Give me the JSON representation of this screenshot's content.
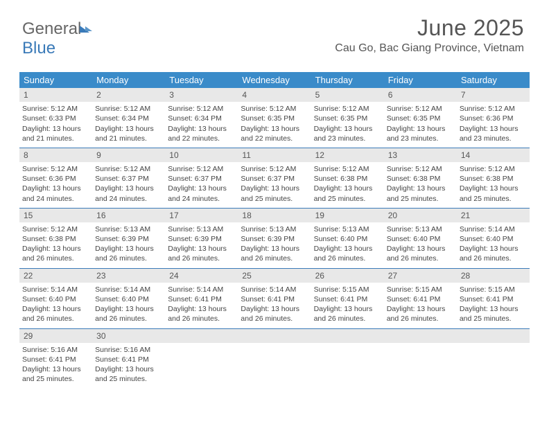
{
  "logo": {
    "part1": "General",
    "part2": "Blue"
  },
  "title": "June 2025",
  "location": "Cau Go, Bac Giang Province, Vietnam",
  "colors": {
    "header_bg": "#3a8bc9",
    "row_divider": "#3a7ab8",
    "daynum_bg": "#e8e8e8",
    "text": "#444444",
    "title_text": "#555555"
  },
  "weekdays": [
    "Sunday",
    "Monday",
    "Tuesday",
    "Wednesday",
    "Thursday",
    "Friday",
    "Saturday"
  ],
  "days": [
    {
      "n": "1",
      "sunrise": "Sunrise: 5:12 AM",
      "sunset": "Sunset: 6:33 PM",
      "dl1": "Daylight: 13 hours",
      "dl2": "and 21 minutes."
    },
    {
      "n": "2",
      "sunrise": "Sunrise: 5:12 AM",
      "sunset": "Sunset: 6:34 PM",
      "dl1": "Daylight: 13 hours",
      "dl2": "and 21 minutes."
    },
    {
      "n": "3",
      "sunrise": "Sunrise: 5:12 AM",
      "sunset": "Sunset: 6:34 PM",
      "dl1": "Daylight: 13 hours",
      "dl2": "and 22 minutes."
    },
    {
      "n": "4",
      "sunrise": "Sunrise: 5:12 AM",
      "sunset": "Sunset: 6:35 PM",
      "dl1": "Daylight: 13 hours",
      "dl2": "and 22 minutes."
    },
    {
      "n": "5",
      "sunrise": "Sunrise: 5:12 AM",
      "sunset": "Sunset: 6:35 PM",
      "dl1": "Daylight: 13 hours",
      "dl2": "and 23 minutes."
    },
    {
      "n": "6",
      "sunrise": "Sunrise: 5:12 AM",
      "sunset": "Sunset: 6:35 PM",
      "dl1": "Daylight: 13 hours",
      "dl2": "and 23 minutes."
    },
    {
      "n": "7",
      "sunrise": "Sunrise: 5:12 AM",
      "sunset": "Sunset: 6:36 PM",
      "dl1": "Daylight: 13 hours",
      "dl2": "and 23 minutes."
    },
    {
      "n": "8",
      "sunrise": "Sunrise: 5:12 AM",
      "sunset": "Sunset: 6:36 PM",
      "dl1": "Daylight: 13 hours",
      "dl2": "and 24 minutes."
    },
    {
      "n": "9",
      "sunrise": "Sunrise: 5:12 AM",
      "sunset": "Sunset: 6:37 PM",
      "dl1": "Daylight: 13 hours",
      "dl2": "and 24 minutes."
    },
    {
      "n": "10",
      "sunrise": "Sunrise: 5:12 AM",
      "sunset": "Sunset: 6:37 PM",
      "dl1": "Daylight: 13 hours",
      "dl2": "and 24 minutes."
    },
    {
      "n": "11",
      "sunrise": "Sunrise: 5:12 AM",
      "sunset": "Sunset: 6:37 PM",
      "dl1": "Daylight: 13 hours",
      "dl2": "and 25 minutes."
    },
    {
      "n": "12",
      "sunrise": "Sunrise: 5:12 AM",
      "sunset": "Sunset: 6:38 PM",
      "dl1": "Daylight: 13 hours",
      "dl2": "and 25 minutes."
    },
    {
      "n": "13",
      "sunrise": "Sunrise: 5:12 AM",
      "sunset": "Sunset: 6:38 PM",
      "dl1": "Daylight: 13 hours",
      "dl2": "and 25 minutes."
    },
    {
      "n": "14",
      "sunrise": "Sunrise: 5:12 AM",
      "sunset": "Sunset: 6:38 PM",
      "dl1": "Daylight: 13 hours",
      "dl2": "and 25 minutes."
    },
    {
      "n": "15",
      "sunrise": "Sunrise: 5:12 AM",
      "sunset": "Sunset: 6:38 PM",
      "dl1": "Daylight: 13 hours",
      "dl2": "and 26 minutes."
    },
    {
      "n": "16",
      "sunrise": "Sunrise: 5:13 AM",
      "sunset": "Sunset: 6:39 PM",
      "dl1": "Daylight: 13 hours",
      "dl2": "and 26 minutes."
    },
    {
      "n": "17",
      "sunrise": "Sunrise: 5:13 AM",
      "sunset": "Sunset: 6:39 PM",
      "dl1": "Daylight: 13 hours",
      "dl2": "and 26 minutes."
    },
    {
      "n": "18",
      "sunrise": "Sunrise: 5:13 AM",
      "sunset": "Sunset: 6:39 PM",
      "dl1": "Daylight: 13 hours",
      "dl2": "and 26 minutes."
    },
    {
      "n": "19",
      "sunrise": "Sunrise: 5:13 AM",
      "sunset": "Sunset: 6:40 PM",
      "dl1": "Daylight: 13 hours",
      "dl2": "and 26 minutes."
    },
    {
      "n": "20",
      "sunrise": "Sunrise: 5:13 AM",
      "sunset": "Sunset: 6:40 PM",
      "dl1": "Daylight: 13 hours",
      "dl2": "and 26 minutes."
    },
    {
      "n": "21",
      "sunrise": "Sunrise: 5:14 AM",
      "sunset": "Sunset: 6:40 PM",
      "dl1": "Daylight: 13 hours",
      "dl2": "and 26 minutes."
    },
    {
      "n": "22",
      "sunrise": "Sunrise: 5:14 AM",
      "sunset": "Sunset: 6:40 PM",
      "dl1": "Daylight: 13 hours",
      "dl2": "and 26 minutes."
    },
    {
      "n": "23",
      "sunrise": "Sunrise: 5:14 AM",
      "sunset": "Sunset: 6:40 PM",
      "dl1": "Daylight: 13 hours",
      "dl2": "and 26 minutes."
    },
    {
      "n": "24",
      "sunrise": "Sunrise: 5:14 AM",
      "sunset": "Sunset: 6:41 PM",
      "dl1": "Daylight: 13 hours",
      "dl2": "and 26 minutes."
    },
    {
      "n": "25",
      "sunrise": "Sunrise: 5:14 AM",
      "sunset": "Sunset: 6:41 PM",
      "dl1": "Daylight: 13 hours",
      "dl2": "and 26 minutes."
    },
    {
      "n": "26",
      "sunrise": "Sunrise: 5:15 AM",
      "sunset": "Sunset: 6:41 PM",
      "dl1": "Daylight: 13 hours",
      "dl2": "and 26 minutes."
    },
    {
      "n": "27",
      "sunrise": "Sunrise: 5:15 AM",
      "sunset": "Sunset: 6:41 PM",
      "dl1": "Daylight: 13 hours",
      "dl2": "and 26 minutes."
    },
    {
      "n": "28",
      "sunrise": "Sunrise: 5:15 AM",
      "sunset": "Sunset: 6:41 PM",
      "dl1": "Daylight: 13 hours",
      "dl2": "and 25 minutes."
    },
    {
      "n": "29",
      "sunrise": "Sunrise: 5:16 AM",
      "sunset": "Sunset: 6:41 PM",
      "dl1": "Daylight: 13 hours",
      "dl2": "and 25 minutes."
    },
    {
      "n": "30",
      "sunrise": "Sunrise: 5:16 AM",
      "sunset": "Sunset: 6:41 PM",
      "dl1": "Daylight: 13 hours",
      "dl2": "and 25 minutes."
    }
  ]
}
